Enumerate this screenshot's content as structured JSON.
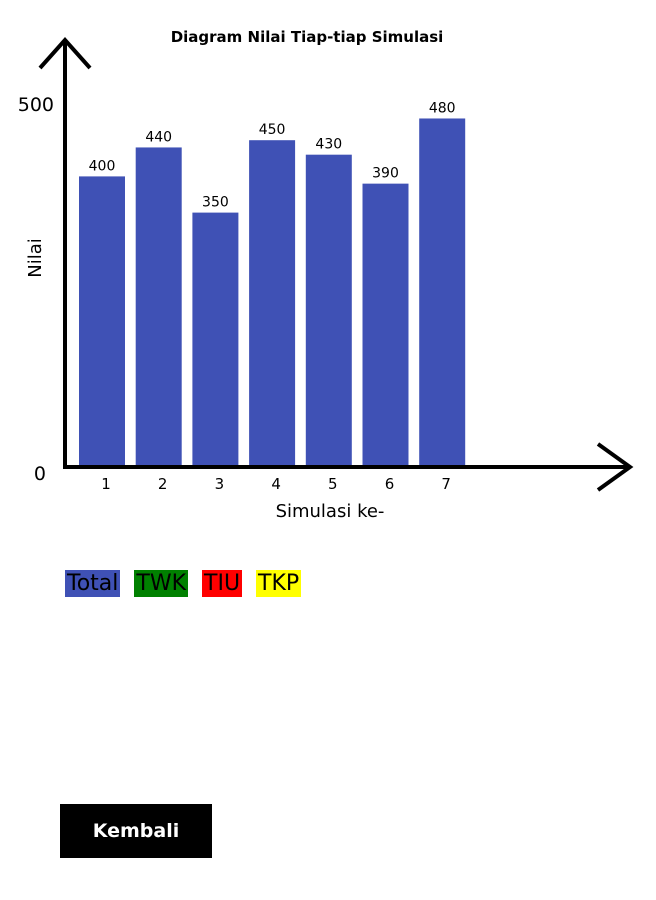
{
  "chart_data": {
    "type": "bar",
    "title": "Diagram Nilai Tiap-tiap Simulasi",
    "xlabel": "Simulasi ke-",
    "ylabel": "Nilai",
    "categories": [
      "1",
      "2",
      "3",
      "4",
      "5",
      "6",
      "7"
    ],
    "values": [
      400,
      440,
      350,
      450,
      430,
      390,
      480
    ],
    "ylim": [
      0,
      500
    ],
    "yticks": [
      "0",
      "500"
    ],
    "grid": false,
    "bar_color": "#3f51b5"
  },
  "legend": [
    {
      "label": "Total",
      "color": "#3f51b5"
    },
    {
      "label": "TWK",
      "color": "#008000"
    },
    {
      "label": "TIU",
      "color": "#ff0000"
    },
    {
      "label": "TKP",
      "color": "#ffff00"
    }
  ],
  "back_button": {
    "label": "Kembali"
  }
}
